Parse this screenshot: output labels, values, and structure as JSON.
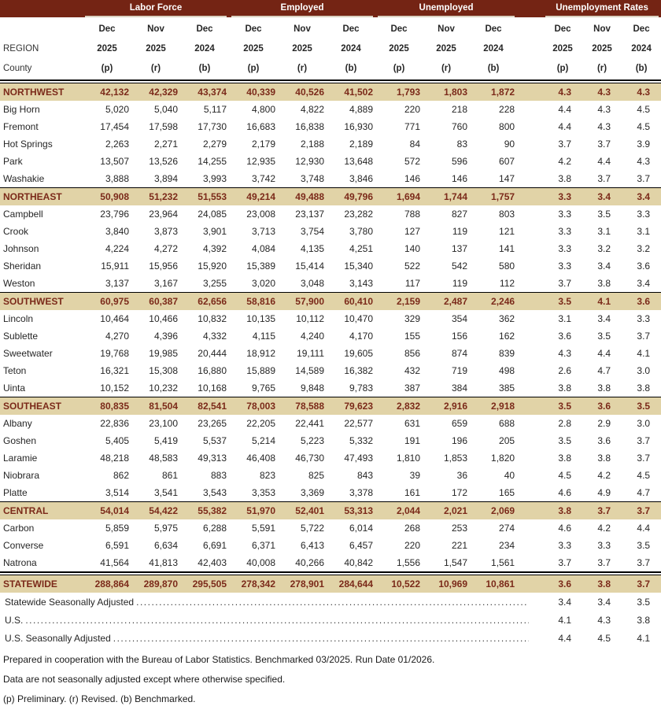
{
  "colors": {
    "band_bg": "#742414",
    "band_underline": "#D9D1C0",
    "region_row_bg": "#E1D3A7",
    "region_row_text": "#7B2A1A",
    "body_text": "#262626"
  },
  "table": {
    "corner": {
      "line1": "REGION",
      "line2": "County"
    },
    "groups": [
      "Labor Force",
      "Employed",
      "Unemployed",
      "Unemployment Rates"
    ],
    "period_columns": [
      {
        "month": "Dec",
        "year": "2025",
        "note": "(p)"
      },
      {
        "month": "Nov",
        "year": "2025",
        "note": "(r)"
      },
      {
        "month": "Dec",
        "year": "2024",
        "note": "(b)"
      }
    ],
    "sections": [
      {
        "region": {
          "name": "NORTHWEST",
          "values": [
            "42,132",
            "42,329",
            "43,374",
            "40,339",
            "40,526",
            "41,502",
            "1,793",
            "1,803",
            "1,872",
            "4.3",
            "4.3",
            "4.3"
          ]
        },
        "counties": [
          {
            "name": "Big Horn",
            "values": [
              "5,020",
              "5,040",
              "5,117",
              "4,800",
              "4,822",
              "4,889",
              "220",
              "218",
              "228",
              "4.4",
              "4.3",
              "4.5"
            ]
          },
          {
            "name": "Fremont",
            "values": [
              "17,454",
              "17,598",
              "17,730",
              "16,683",
              "16,838",
              "16,930",
              "771",
              "760",
              "800",
              "4.4",
              "4.3",
              "4.5"
            ]
          },
          {
            "name": "Hot Springs",
            "values": [
              "2,263",
              "2,271",
              "2,279",
              "2,179",
              "2,188",
              "2,189",
              "84",
              "83",
              "90",
              "3.7",
              "3.7",
              "3.9"
            ]
          },
          {
            "name": "Park",
            "values": [
              "13,507",
              "13,526",
              "14,255",
              "12,935",
              "12,930",
              "13,648",
              "572",
              "596",
              "607",
              "4.2",
              "4.4",
              "4.3"
            ]
          },
          {
            "name": "Washakie",
            "values": [
              "3,888",
              "3,894",
              "3,993",
              "3,742",
              "3,748",
              "3,846",
              "146",
              "146",
              "147",
              "3.8",
              "3.7",
              "3.7"
            ]
          }
        ]
      },
      {
        "region": {
          "name": "NORTHEAST",
          "values": [
            "50,908",
            "51,232",
            "51,553",
            "49,214",
            "49,488",
            "49,796",
            "1,694",
            "1,744",
            "1,757",
            "3.3",
            "3.4",
            "3.4"
          ]
        },
        "counties": [
          {
            "name": "Campbell",
            "values": [
              "23,796",
              "23,964",
              "24,085",
              "23,008",
              "23,137",
              "23,282",
              "788",
              "827",
              "803",
              "3.3",
              "3.5",
              "3.3"
            ]
          },
          {
            "name": "Crook",
            "values": [
              "3,840",
              "3,873",
              "3,901",
              "3,713",
              "3,754",
              "3,780",
              "127",
              "119",
              "121",
              "3.3",
              "3.1",
              "3.1"
            ]
          },
          {
            "name": "Johnson",
            "values": [
              "4,224",
              "4,272",
              "4,392",
              "4,084",
              "4,135",
              "4,251",
              "140",
              "137",
              "141",
              "3.3",
              "3.2",
              "3.2"
            ]
          },
          {
            "name": "Sheridan",
            "values": [
              "15,911",
              "15,956",
              "15,920",
              "15,389",
              "15,414",
              "15,340",
              "522",
              "542",
              "580",
              "3.3",
              "3.4",
              "3.6"
            ]
          },
          {
            "name": "Weston",
            "values": [
              "3,137",
              "3,167",
              "3,255",
              "3,020",
              "3,048",
              "3,143",
              "117",
              "119",
              "112",
              "3.7",
              "3.8",
              "3.4"
            ]
          }
        ]
      },
      {
        "region": {
          "name": "SOUTHWEST",
          "values": [
            "60,975",
            "60,387",
            "62,656",
            "58,816",
            "57,900",
            "60,410",
            "2,159",
            "2,487",
            "2,246",
            "3.5",
            "4.1",
            "3.6"
          ]
        },
        "counties": [
          {
            "name": "Lincoln",
            "values": [
              "10,464",
              "10,466",
              "10,832",
              "10,135",
              "10,112",
              "10,470",
              "329",
              "354",
              "362",
              "3.1",
              "3.4",
              "3.3"
            ]
          },
          {
            "name": "Sublette",
            "values": [
              "4,270",
              "4,396",
              "4,332",
              "4,115",
              "4,240",
              "4,170",
              "155",
              "156",
              "162",
              "3.6",
              "3.5",
              "3.7"
            ]
          },
          {
            "name": "Sweetwater",
            "values": [
              "19,768",
              "19,985",
              "20,444",
              "18,912",
              "19,111",
              "19,605",
              "856",
              "874",
              "839",
              "4.3",
              "4.4",
              "4.1"
            ]
          },
          {
            "name": "Teton",
            "values": [
              "16,321",
              "15,308",
              "16,880",
              "15,889",
              "14,589",
              "16,382",
              "432",
              "719",
              "498",
              "2.6",
              "4.7",
              "3.0"
            ]
          },
          {
            "name": "Uinta",
            "values": [
              "10,152",
              "10,232",
              "10,168",
              "9,765",
              "9,848",
              "9,783",
              "387",
              "384",
              "385",
              "3.8",
              "3.8",
              "3.8"
            ]
          }
        ]
      },
      {
        "region": {
          "name": "SOUTHEAST",
          "values": [
            "80,835",
            "81,504",
            "82,541",
            "78,003",
            "78,588",
            "79,623",
            "2,832",
            "2,916",
            "2,918",
            "3.5",
            "3.6",
            "3.5"
          ]
        },
        "counties": [
          {
            "name": "Albany",
            "values": [
              "22,836",
              "23,100",
              "23,265",
              "22,205",
              "22,441",
              "22,577",
              "631",
              "659",
              "688",
              "2.8",
              "2.9",
              "3.0"
            ]
          },
          {
            "name": "Goshen",
            "values": [
              "5,405",
              "5,419",
              "5,537",
              "5,214",
              "5,223",
              "5,332",
              "191",
              "196",
              "205",
              "3.5",
              "3.6",
              "3.7"
            ]
          },
          {
            "name": "Laramie",
            "values": [
              "48,218",
              "48,583",
              "49,313",
              "46,408",
              "46,730",
              "47,493",
              "1,810",
              "1,853",
              "1,820",
              "3.8",
              "3.8",
              "3.7"
            ]
          },
          {
            "name": "Niobrara",
            "values": [
              "862",
              "861",
              "883",
              "823",
              "825",
              "843",
              "39",
              "36",
              "40",
              "4.5",
              "4.2",
              "4.5"
            ]
          },
          {
            "name": "Platte",
            "values": [
              "3,514",
              "3,541",
              "3,543",
              "3,353",
              "3,369",
              "3,378",
              "161",
              "172",
              "165",
              "4.6",
              "4.9",
              "4.7"
            ]
          }
        ]
      },
      {
        "region": {
          "name": "CENTRAL",
          "values": [
            "54,014",
            "54,422",
            "55,382",
            "51,970",
            "52,401",
            "53,313",
            "2,044",
            "2,021",
            "2,069",
            "3.8",
            "3.7",
            "3.7"
          ]
        },
        "counties": [
          {
            "name": "Carbon",
            "values": [
              "5,859",
              "5,975",
              "6,288",
              "5,591",
              "5,722",
              "6,014",
              "268",
              "253",
              "274",
              "4.6",
              "4.2",
              "4.4"
            ]
          },
          {
            "name": "Converse",
            "values": [
              "6,591",
              "6,634",
              "6,691",
              "6,371",
              "6,413",
              "6,457",
              "220",
              "221",
              "234",
              "3.3",
              "3.3",
              "3.5"
            ]
          },
          {
            "name": "Natrona",
            "values": [
              "41,564",
              "41,813",
              "42,403",
              "40,008",
              "40,266",
              "40,842",
              "1,556",
              "1,547",
              "1,561",
              "3.7",
              "3.7",
              "3.7"
            ]
          }
        ]
      }
    ],
    "statewide": {
      "name": "STATEWIDE",
      "values": [
        "288,864",
        "289,870",
        "295,505",
        "278,342",
        "278,901",
        "284,644",
        "10,522",
        "10,969",
        "10,861",
        "3.6",
        "3.8",
        "3.7"
      ]
    },
    "adjusted_rows": [
      {
        "label": "Statewide Seasonally Adjusted",
        "rates": [
          "3.4",
          "3.4",
          "3.5"
        ]
      },
      {
        "label": "U.S.",
        "rates": [
          "4.1",
          "4.3",
          "3.8"
        ]
      },
      {
        "label": "U.S. Seasonally Adjusted",
        "rates": [
          "4.4",
          "4.5",
          "4.1"
        ]
      }
    ],
    "notes": [
      "Prepared in cooperation with the Bureau of Labor Statistics.  Benchmarked 03/2025. Run Date 01/2026.",
      "Data are not seasonally adjusted except where otherwise specified.",
      "(p) Preliminary. (r) Revised. (b) Benchmarked."
    ]
  }
}
